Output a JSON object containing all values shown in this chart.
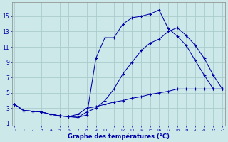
{
  "title": "Graphe des températures (°C)",
  "bg_color": "#cce8e8",
  "grid_color": "#aacccc",
  "line_color": "#0000aa",
  "x_ticks": [
    0,
    1,
    2,
    3,
    4,
    5,
    6,
    7,
    8,
    9,
    10,
    11,
    12,
    13,
    14,
    15,
    16,
    17,
    18,
    19,
    20,
    21,
    22,
    23
  ],
  "y_ticks": [
    1,
    3,
    5,
    7,
    9,
    11,
    13,
    15
  ],
  "x_min": 0,
  "x_max": 23,
  "y_min": 1,
  "y_max": 16,
  "line1_x": [
    0,
    1,
    2,
    3,
    4,
    5,
    6,
    7,
    8,
    9,
    10,
    11,
    12,
    13,
    14,
    15,
    16,
    17,
    18,
    19,
    20,
    21,
    22,
    23
  ],
  "line1_y": [
    3.5,
    2.7,
    2.6,
    2.5,
    2.2,
    2.0,
    1.9,
    1.8,
    2.1,
    9.5,
    12.2,
    12.2,
    14.0,
    14.8,
    15.0,
    15.3,
    15.8,
    13.4,
    12.4,
    11.2,
    9.2,
    7.3,
    5.5,
    5.5
  ],
  "line2_x": [
    0,
    1,
    2,
    3,
    4,
    5,
    6,
    7,
    8,
    9,
    10,
    11,
    12,
    13,
    14,
    15,
    16,
    17,
    18,
    19,
    20,
    21,
    22,
    23
  ],
  "line2_y": [
    3.5,
    2.7,
    2.6,
    2.5,
    2.2,
    2.0,
    1.9,
    1.8,
    2.5,
    3.0,
    4.0,
    5.5,
    7.5,
    9.0,
    10.5,
    11.5,
    12.0,
    13.0,
    13.5,
    12.5,
    11.2,
    9.5,
    7.3,
    5.5
  ],
  "line3_x": [
    0,
    1,
    2,
    3,
    4,
    5,
    6,
    7,
    8,
    9,
    10,
    11,
    12,
    13,
    14,
    15,
    16,
    17,
    18,
    19,
    20,
    21,
    22,
    23
  ],
  "line3_y": [
    3.5,
    2.7,
    2.6,
    2.5,
    2.2,
    2.0,
    1.9,
    2.2,
    3.0,
    3.2,
    3.5,
    3.8,
    4.0,
    4.3,
    4.5,
    4.8,
    5.0,
    5.2,
    5.5,
    5.5,
    5.5,
    5.5,
    5.5,
    5.5
  ]
}
